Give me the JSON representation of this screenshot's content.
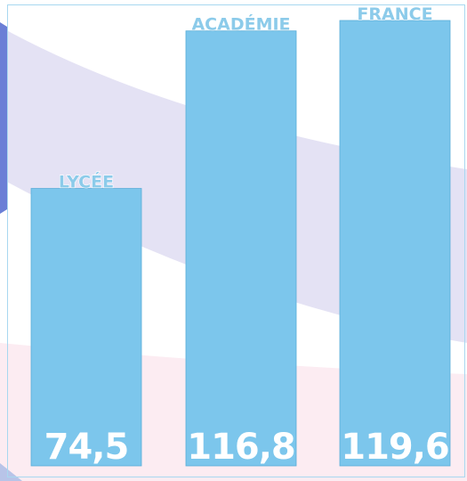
{
  "chart_data": {
    "type": "bar",
    "categories": [
      "LYCÉE",
      "ACADÉMIE",
      "FRANCE"
    ],
    "values": [
      74.5,
      116.8,
      119.6
    ],
    "value_labels": [
      "74,5",
      "116,8",
      "119,6"
    ],
    "color": "#7cc6ec"
  }
}
